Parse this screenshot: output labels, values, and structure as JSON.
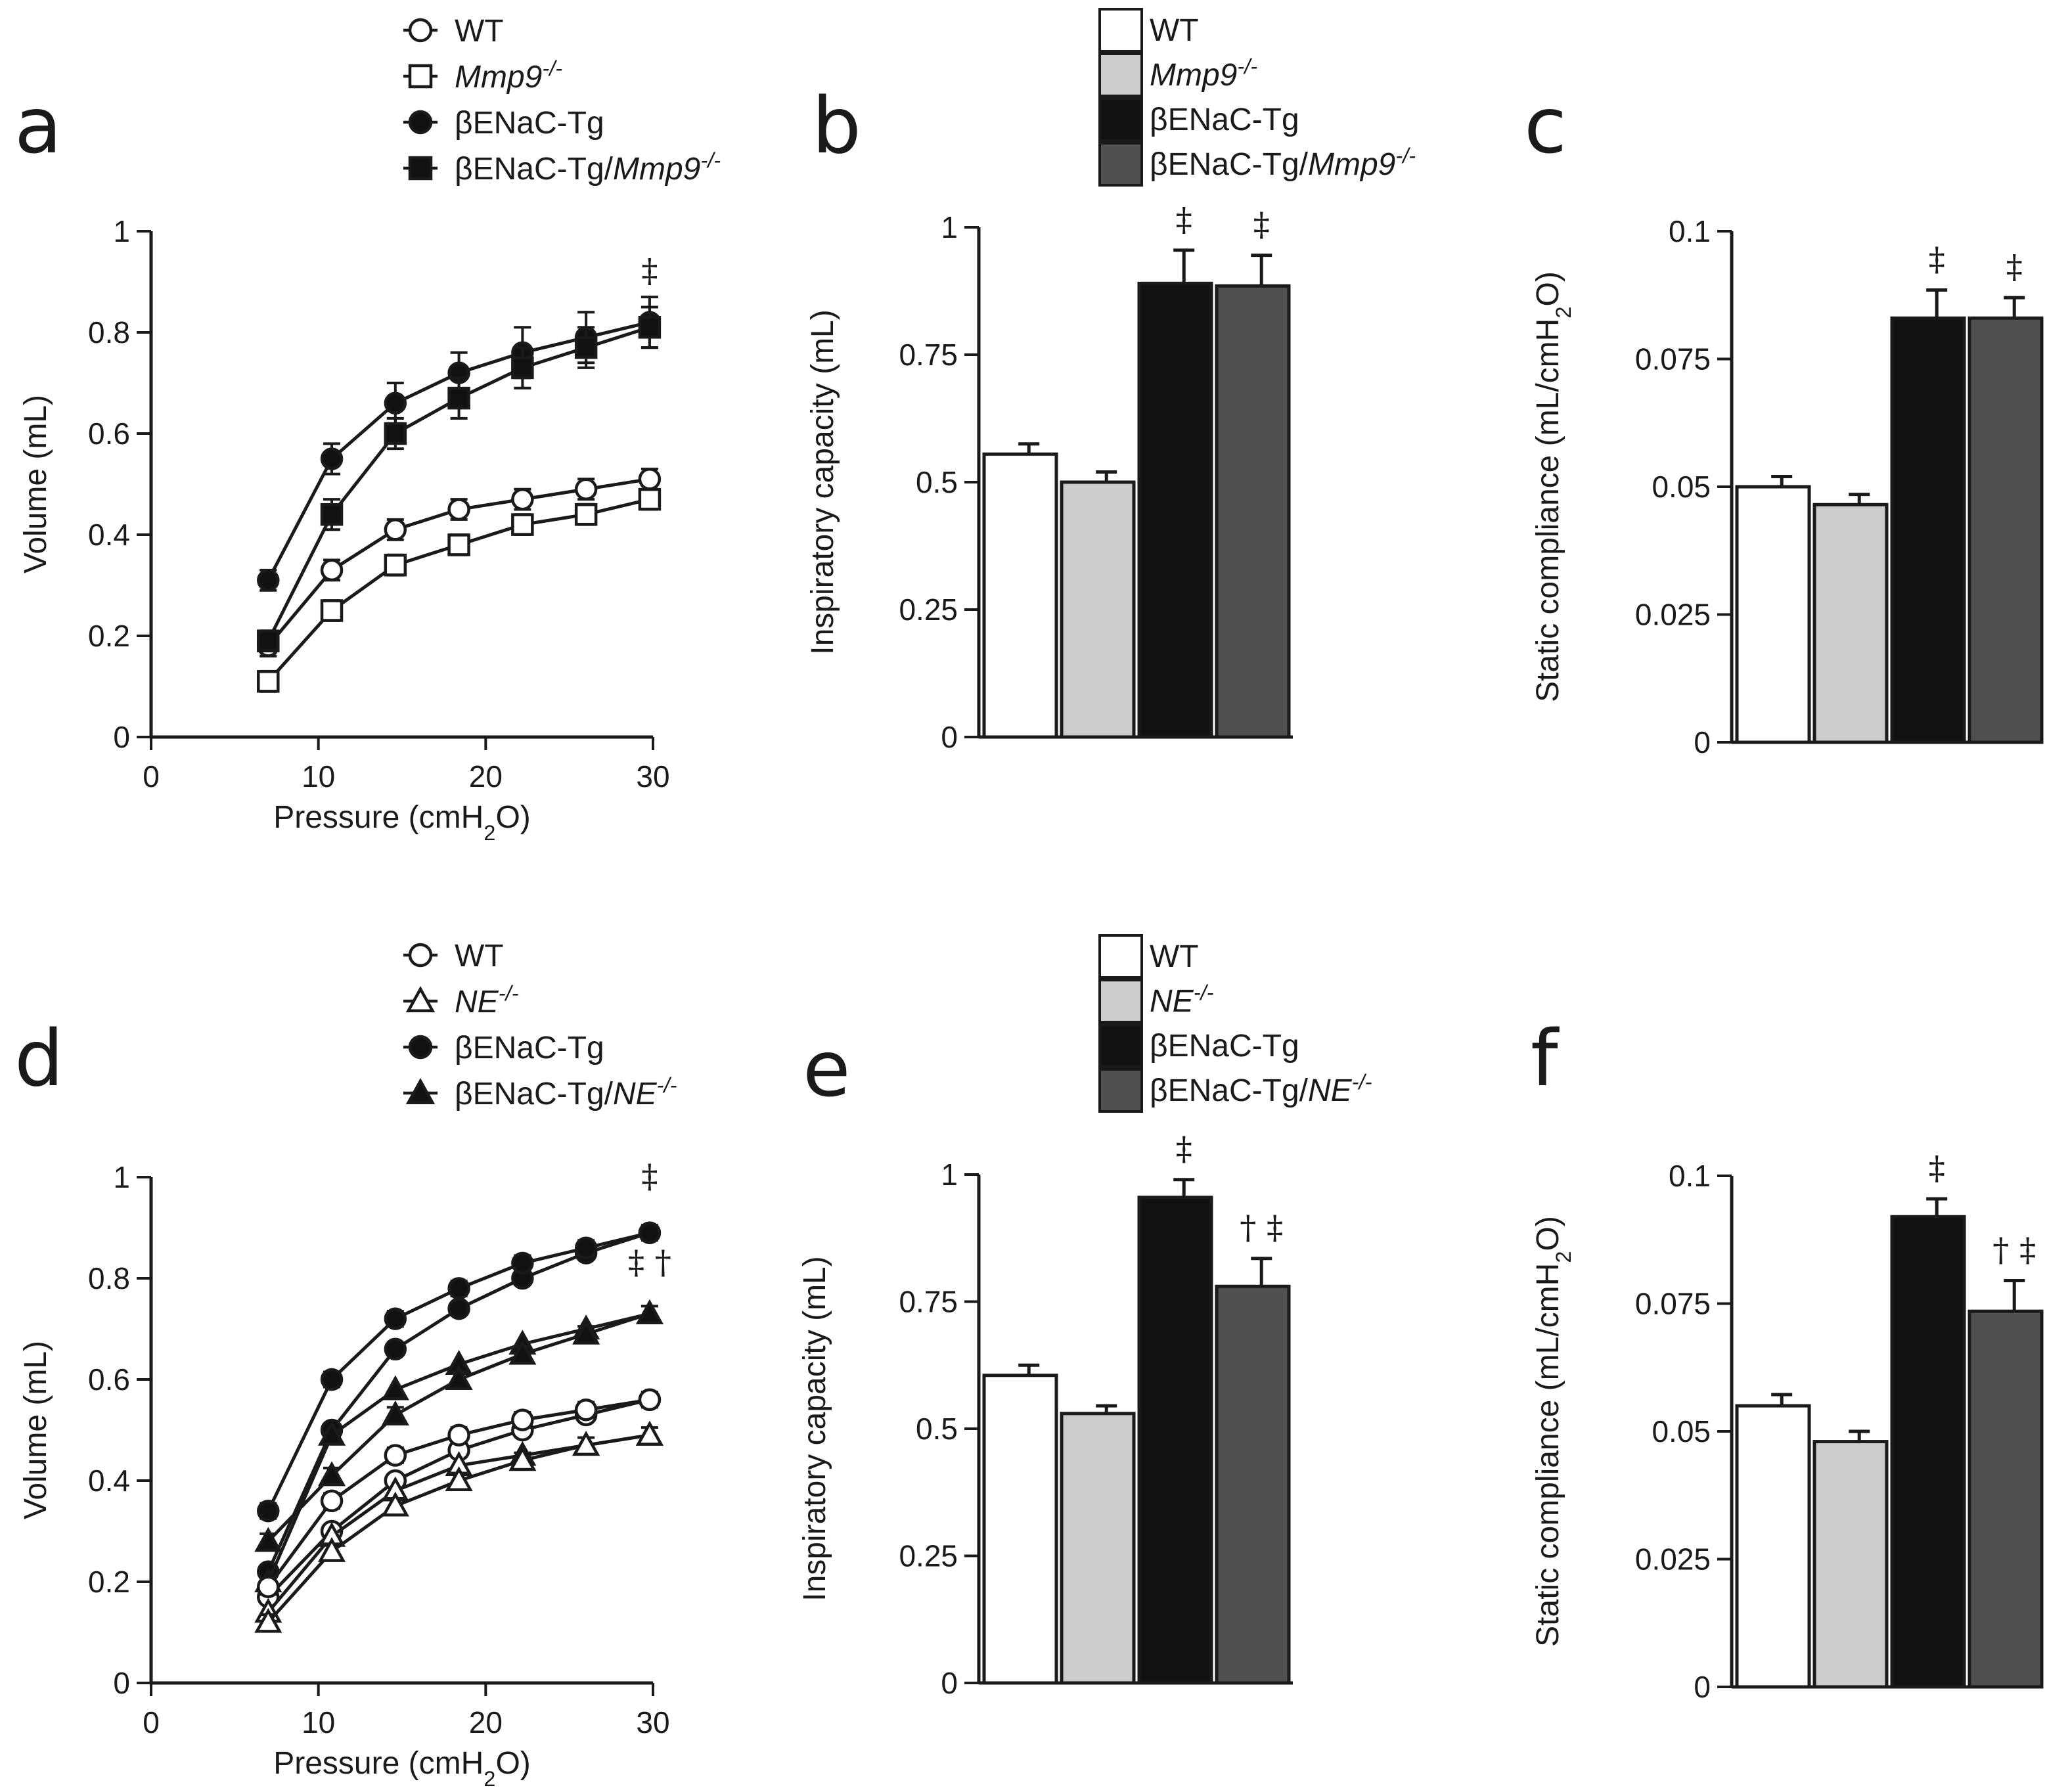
{
  "panels": {
    "a": "a",
    "b": "b",
    "c": "c",
    "d": "d",
    "e": "e",
    "f": "f"
  },
  "colors": {
    "wt": "#ffffff",
    "knockout": "#cccccc",
    "tg": "#111111",
    "tg_knockout": "#505050",
    "axis": "#1a1a1a"
  },
  "chart_data": [
    {
      "id": "a",
      "type": "line",
      "xlabel": "Pressure (cmH2O)",
      "ylabel": "Volume (mL)",
      "xlim": [
        0,
        30
      ],
      "ylim": [
        0,
        1
      ],
      "xticks": [
        "0",
        "10",
        "20",
        "30"
      ],
      "yticks": [
        "0",
        "0.2",
        "0.4",
        "0.6",
        "0.8",
        "1"
      ],
      "x": [
        7,
        10.8,
        14.6,
        18.4,
        22.2,
        26,
        29.8
      ],
      "legend": [
        "WT",
        "Mmp9-/-",
        "βENaC-Tg",
        "βENaC-Tg/Mmp9-/-"
      ],
      "series": [
        {
          "name": "WT",
          "marker": "circle-open",
          "values": [
            0.18,
            0.33,
            0.41,
            0.45,
            0.47,
            0.49,
            0.51
          ],
          "errors": [
            0.02,
            0.02,
            0.02,
            0.02,
            0.02,
            0.02,
            0.02
          ]
        },
        {
          "name": "Mmp9-/-",
          "marker": "square-open",
          "values": [
            0.11,
            0.25,
            0.34,
            0.38,
            0.42,
            0.44,
            0.47
          ],
          "errors": [
            0.02,
            0.02,
            0.02,
            0.02,
            0.02,
            0.02,
            0.02
          ]
        },
        {
          "name": "βENaC-Tg",
          "marker": "circle-filled",
          "values": [
            0.31,
            0.55,
            0.66,
            0.72,
            0.76,
            0.79,
            0.82
          ],
          "errors": [
            0.02,
            0.03,
            0.04,
            0.04,
            0.05,
            0.05,
            0.05
          ]
        },
        {
          "name": "βENaC-Tg/Mmp9-/-",
          "marker": "square-filled",
          "values": [
            0.19,
            0.44,
            0.6,
            0.67,
            0.73,
            0.77,
            0.81
          ],
          "errors": [
            0.02,
            0.03,
            0.03,
            0.04,
            0.04,
            0.04,
            0.04
          ]
        }
      ],
      "annotations": [
        {
          "text": "‡",
          "x": 29.8,
          "y": 0.9
        }
      ]
    },
    {
      "id": "b",
      "type": "bar",
      "ylabel": "Inspiratory capacity (mL)",
      "ylim": [
        0,
        1
      ],
      "yticks": [
        "0",
        "0.25",
        "0.5",
        "0.75",
        "1"
      ],
      "categories": [
        "WT",
        "Mmp9-/-",
        "βENaC-Tg",
        "βENaC-Tg/Mmp9-/-"
      ],
      "values": [
        0.555,
        0.5,
        0.89,
        0.885
      ],
      "errors": [
        0.02,
        0.02,
        0.065,
        0.06
      ],
      "marks": [
        "",
        "",
        "‡",
        "‡"
      ]
    },
    {
      "id": "c",
      "type": "bar",
      "ylabel": "Static compliance (mL/cmH2O)",
      "ylim": [
        0,
        0.1
      ],
      "yticks": [
        "0",
        "0.025",
        "0.05",
        "0.075",
        "0.1"
      ],
      "categories": [
        "WT",
        "Mmp9-/-",
        "βENaC-Tg",
        "βENaC-Tg/Mmp9-/-"
      ],
      "values": [
        0.05,
        0.0465,
        0.083,
        0.083
      ],
      "errors": [
        0.002,
        0.002,
        0.0055,
        0.004
      ],
      "marks": [
        "",
        "",
        "‡",
        "‡"
      ]
    },
    {
      "id": "d",
      "type": "line",
      "xlabel": "Pressure (cmH2O)",
      "ylabel": "Volume (mL)",
      "xlim": [
        0,
        30
      ],
      "ylim": [
        0,
        1
      ],
      "xticks": [
        "0",
        "10",
        "20",
        "30"
      ],
      "yticks": [
        "0",
        "0.2",
        "0.4",
        "0.6",
        "0.8",
        "1"
      ],
      "x": [
        7,
        10.8,
        14.6,
        18.4,
        22.2,
        26,
        29.8
      ],
      "legend": [
        "WT",
        "NE-/-",
        "βENaC-Tg",
        "βENaC-Tg/NE-/-"
      ],
      "series": [
        {
          "name": "WT",
          "marker": "circle-open",
          "values": [
            0.19,
            0.36,
            0.45,
            0.49,
            0.52,
            0.54,
            0.56
          ],
          "errors": [
            0.015,
            0.015,
            0.015,
            0.015,
            0.015,
            0.015,
            0.015
          ]
        },
        {
          "name": "NE-/-",
          "marker": "triangle-open",
          "values": [
            0.12,
            0.26,
            0.35,
            0.4,
            0.44,
            0.47,
            0.49
          ],
          "errors": [
            0.015,
            0.015,
            0.015,
            0.015,
            0.015,
            0.015,
            0.015
          ]
        },
        {
          "name": "βENaC-Tg",
          "marker": "circle-filled",
          "values": [
            0.34,
            0.6,
            0.72,
            0.78,
            0.83,
            0.86,
            0.89
          ],
          "errors": [
            0.015,
            0.015,
            0.015,
            0.015,
            0.015,
            0.015,
            0.015
          ]
        },
        {
          "name": "βENaC-Tg/NE-/-",
          "marker": "triangle-filled",
          "values": [
            0.28,
            0.41,
            0.53,
            0.6,
            0.65,
            0.69,
            0.73
          ],
          "errors": [
            0.015,
            0.015,
            0.015,
            0.015,
            0.015,
            0.015,
            0.015
          ]
        }
      ],
      "extra_series_note": "intermediate curves",
      "extra_series": [
        {
          "name": "WT",
          "marker": "circle-open",
          "values": [
            0.17,
            0.3,
            0.4,
            0.46,
            0.5,
            0.53,
            0.56
          ]
        },
        {
          "name": "NE-/-",
          "marker": "triangle-open",
          "values": [
            0.14,
            0.29,
            0.38,
            0.43,
            0.45,
            0.47,
            0.49
          ]
        },
        {
          "name": "βENaC-Tg",
          "marker": "circle-filled",
          "values": [
            0.22,
            0.5,
            0.66,
            0.74,
            0.8,
            0.85,
            0.89
          ]
        },
        {
          "name": "βENaC-Tg/NE-/-",
          "marker": "triangle-filled",
          "values": [
            0.2,
            0.49,
            0.58,
            0.63,
            0.67,
            0.7,
            0.73
          ]
        }
      ],
      "annotations": [
        {
          "text": "‡",
          "x": 29.8,
          "y": 0.98
        },
        {
          "text": "‡ †",
          "x": 29.8,
          "y": 0.81
        }
      ]
    },
    {
      "id": "e",
      "type": "bar",
      "ylabel": "Inspiratory capacity (mL)",
      "ylim": [
        0,
        1
      ],
      "yticks": [
        "0",
        "0.25",
        "0.5",
        "0.75",
        "1"
      ],
      "categories": [
        "WT",
        "NE-/-",
        "βENaC-Tg",
        "βENaC-Tg/NE-/-"
      ],
      "values": [
        0.605,
        0.53,
        0.955,
        0.78
      ],
      "errors": [
        0.02,
        0.015,
        0.035,
        0.055
      ],
      "marks": [
        "",
        "",
        "‡",
        "† ‡"
      ]
    },
    {
      "id": "f",
      "type": "bar",
      "ylabel": "Static compliance (mL/cmH2O)",
      "ylim": [
        0,
        0.1
      ],
      "yticks": [
        "0",
        "0.025",
        "0.05",
        "0.075",
        "0.1"
      ],
      "categories": [
        "WT",
        "NE-/-",
        "βENaC-Tg",
        "βENaC-Tg/NE-/-"
      ],
      "values": [
        0.055,
        0.048,
        0.092,
        0.0735
      ],
      "errors": [
        0.0022,
        0.002,
        0.0035,
        0.006
      ],
      "marks": [
        "",
        "",
        "‡",
        "† ‡"
      ]
    }
  ]
}
